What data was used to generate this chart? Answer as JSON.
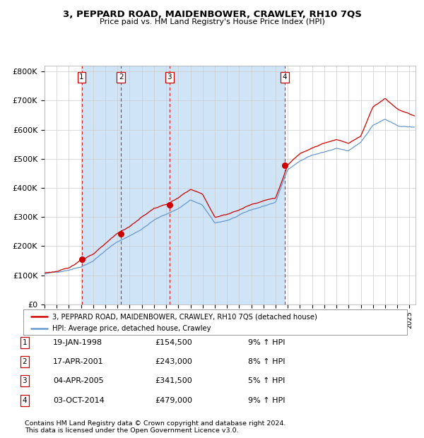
{
  "title": "3, PEPPARD ROAD, MAIDENBOWER, CRAWLEY, RH10 7QS",
  "subtitle": "Price paid vs. HM Land Registry's House Price Index (HPI)",
  "legend_line1": "3, PEPPARD ROAD, MAIDENBOWER, CRAWLEY, RH10 7QS (detached house)",
  "legend_line2": "HPI: Average price, detached house, Crawley",
  "footer1": "Contains HM Land Registry data © Crown copyright and database right 2024.",
  "footer2": "This data is licensed under the Open Government Licence v3.0.",
  "sale_points": [
    {
      "label": "1",
      "date_str": "19-JAN-1998",
      "price": 154500,
      "pct": "9%",
      "year": 1998.05
    },
    {
      "label": "2",
      "date_str": "17-APR-2001",
      "price": 243000,
      "pct": "8%",
      "year": 2001.29
    },
    {
      "label": "3",
      "date_str": "04-APR-2005",
      "price": 341500,
      "pct": "5%",
      "year": 2005.26
    },
    {
      "label": "4",
      "date_str": "03-OCT-2014",
      "price": 479000,
      "pct": "9%",
      "year": 2014.75
    }
  ],
  "ylim": [
    0,
    820000
  ],
  "xlim_start": 1995.0,
  "xlim_end": 2025.5,
  "bg_color": "#dce9f5",
  "plot_bg_white": "#ffffff",
  "red_line_color": "#cc0000",
  "blue_line_color": "#6699cc",
  "vline_color": "#cc0000",
  "marker_color": "#cc0000",
  "grid_color": "#cccccc",
  "shade_color": "#d0e4f7",
  "yticks": [
    0,
    100000,
    200000,
    300000,
    400000,
    500000,
    600000,
    700000,
    800000
  ],
  "ytick_labels": [
    "£0",
    "£100K",
    "£200K",
    "£300K",
    "£400K",
    "£500K",
    "£600K",
    "£700K",
    "£800K"
  ]
}
